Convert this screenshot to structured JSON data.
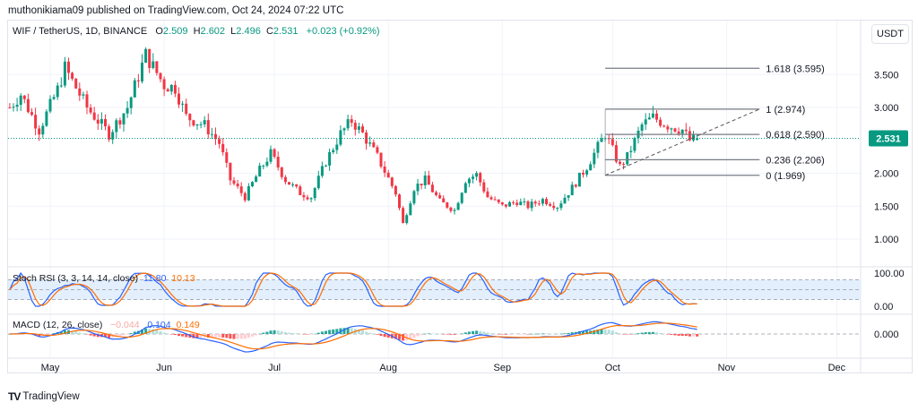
{
  "publisher": "muthonikiama09 published on TradingView.com, Oct 24, 2024 07:22 UTC",
  "symbol": {
    "title": "WIF / TetherUS, 1D, BINANCE",
    "o_label": "O",
    "o": "2.509",
    "h_label": "H",
    "h": "2.602",
    "l_label": "L",
    "l": "2.496",
    "c_label": "C",
    "c": "2.531",
    "change": "+0.023 (+0.92%)"
  },
  "currency_button": "USDT",
  "colors": {
    "up": "#089981",
    "down": "#f23645",
    "stoch_k": "#2962ff",
    "stoch_d": "#ff6d00",
    "band": "#e3effd",
    "grid": "#f0f3fa"
  },
  "price_axis": {
    "ticks": [
      "3.500",
      "3.000",
      "2.000",
      "1.500",
      "1.000"
    ],
    "tick_values": [
      3.5,
      3.0,
      2.0,
      1.5,
      1.0
    ],
    "last_price": "2.531"
  },
  "time_axis": {
    "ticks": [
      "May",
      "Jun",
      "Jul",
      "Aug",
      "Sep",
      "Oct",
      "Nov",
      "Dec"
    ],
    "tick_dates": [
      "2024-05-01",
      "2024-06-01",
      "2024-07-01",
      "2024-08-01",
      "2024-09-01",
      "2024-10-01",
      "2024-11-01",
      "2024-12-01"
    ]
  },
  "fibonacci": {
    "start_date": "2024-09-29",
    "end_date": "2024-11-10",
    "levels": [
      {
        "ratio": 1.618,
        "price": 3.595,
        "label": "1.618 (3.595)"
      },
      {
        "ratio": 1,
        "price": 2.974,
        "label": "1 (2.974)"
      },
      {
        "ratio": 0.618,
        "price": 2.59,
        "label": "0.618 (2.590)"
      },
      {
        "ratio": 0.236,
        "price": 2.206,
        "label": "0.236 (2.206)"
      },
      {
        "ratio": 0,
        "price": 1.969,
        "label": "0 (1.969)"
      }
    ]
  },
  "trendline": {
    "from": [
      "2024-09-29",
      1.969
    ],
    "to": [
      "2024-11-10",
      2.974
    ],
    "style": "dashed"
  },
  "stoch_rsi": {
    "title": "Stoch RSI (3, 3, 14, 14, close)",
    "k": "11.80",
    "d": "10.13",
    "axis": [
      "100.00",
      "0.00"
    ],
    "bands": [
      80,
      20
    ]
  },
  "macd": {
    "title": "MACD (12, 26, close)",
    "hist": "−0.044",
    "macd": "0.104",
    "signal": "0.149",
    "axis": [
      "0.000"
    ]
  },
  "chart_data": {
    "type": "candlestick",
    "symbol": "WIF / TetherUS",
    "interval": "1D",
    "ylim": [
      0.8,
      3.9
    ],
    "close_waypoints": [
      [
        "2024-04-20",
        3.0
      ],
      [
        "2024-04-23",
        3.2
      ],
      [
        "2024-04-28",
        2.66
      ],
      [
        "2024-05-03",
        3.27
      ],
      [
        "2024-05-05",
        3.6
      ],
      [
        "2024-05-11",
        3.0
      ],
      [
        "2024-05-17",
        2.6
      ],
      [
        "2024-05-22",
        3.0
      ],
      [
        "2024-05-27",
        3.8
      ],
      [
        "2024-06-01",
        3.34
      ],
      [
        "2024-06-04",
        3.3
      ],
      [
        "2024-06-07",
        2.86
      ],
      [
        "2024-06-12",
        2.73
      ],
      [
        "2024-06-16",
        2.46
      ],
      [
        "2024-06-19",
        1.9
      ],
      [
        "2024-06-23",
        1.64
      ],
      [
        "2024-06-27",
        2.05
      ],
      [
        "2024-06-30",
        2.3
      ],
      [
        "2024-07-04",
        1.9
      ],
      [
        "2024-07-08",
        1.7
      ],
      [
        "2024-07-11",
        1.64
      ],
      [
        "2024-07-15",
        2.18
      ],
      [
        "2024-07-19",
        2.6
      ],
      [
        "2024-07-22",
        2.8
      ],
      [
        "2024-07-25",
        2.6
      ],
      [
        "2024-07-29",
        2.25
      ],
      [
        "2024-08-03",
        1.7
      ],
      [
        "2024-08-05",
        1.23
      ],
      [
        "2024-08-08",
        1.78
      ],
      [
        "2024-08-11",
        1.9
      ],
      [
        "2024-08-15",
        1.57
      ],
      [
        "2024-08-19",
        1.44
      ],
      [
        "2024-08-22",
        1.9
      ],
      [
        "2024-08-25",
        1.98
      ],
      [
        "2024-08-28",
        1.64
      ],
      [
        "2024-09-01",
        1.5
      ],
      [
        "2024-09-05",
        1.57
      ],
      [
        "2024-09-08",
        1.5
      ],
      [
        "2024-09-12",
        1.6
      ],
      [
        "2024-09-16",
        1.5
      ],
      [
        "2024-09-20",
        1.78
      ],
      [
        "2024-09-24",
        2.1
      ],
      [
        "2024-09-29",
        2.6
      ],
      [
        "2024-10-03",
        2.1
      ],
      [
        "2024-10-05",
        2.25
      ],
      [
        "2024-10-09",
        2.73
      ],
      [
        "2024-10-12",
        2.85
      ],
      [
        "2024-10-16",
        2.73
      ],
      [
        "2024-10-20",
        2.66
      ],
      [
        "2024-10-22",
        2.5
      ],
      [
        "2024-10-24",
        2.531
      ]
    ],
    "last_candle": {
      "date": "2024-10-24",
      "open": 2.509,
      "high": 2.602,
      "low": 2.496,
      "close": 2.531
    }
  },
  "branding": "TradingView"
}
